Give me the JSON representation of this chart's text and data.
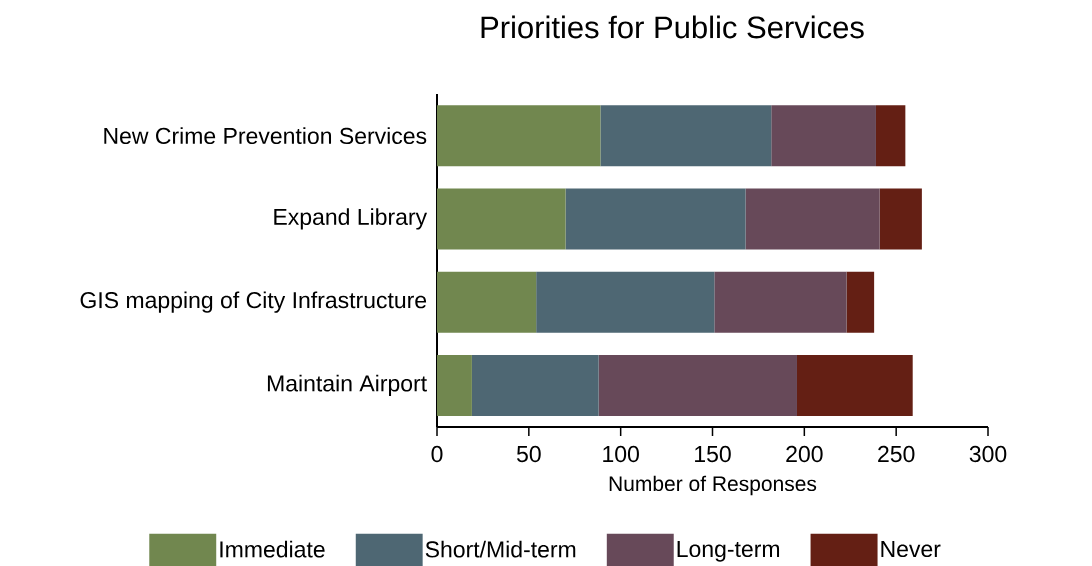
{
  "chart_data": {
    "type": "bar",
    "orientation": "horizontal",
    "stacked": true,
    "title": "Priorities for Public Services",
    "xlabel": "Number of Responses",
    "categories": [
      "New Crime Prevention Services",
      "Expand Library",
      "GIS mapping of City Infrastructure",
      "Maintain Airport"
    ],
    "series": [
      {
        "name": "Immediate",
        "color": "#71874f",
        "values": [
          89,
          70,
          54,
          19
        ]
      },
      {
        "name": "Short/Mid-term",
        "color": "#4e6773",
        "values": [
          93,
          98,
          97,
          69
        ]
      },
      {
        "name": "Long-term",
        "color": "#674959",
        "values": [
          57,
          73,
          72,
          108
        ]
      },
      {
        "name": "Never",
        "color": "#641f14",
        "values": [
          16,
          23,
          15,
          63
        ]
      }
    ],
    "xlim": [
      0,
      300
    ],
    "xticks": [
      0,
      50,
      100,
      150,
      200,
      250,
      300
    ],
    "legend": "bottom"
  }
}
